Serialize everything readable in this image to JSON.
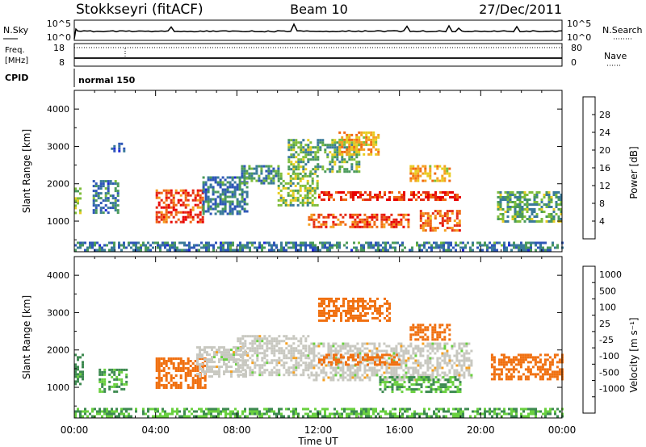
{
  "header": {
    "station": "Stokkseyri (fitACF)",
    "beam": "Beam 10",
    "date": "27/Dec/2011"
  },
  "noise_panel": {
    "left_label": "N.Sky",
    "left_ticks": [
      "10^5",
      "10^0"
    ],
    "right_label": "N.Search",
    "right_ticks": [
      "10^5",
      "10^0"
    ]
  },
  "freq_panel": {
    "left_label_line1": "Freq.",
    "left_label_line2": "[MHz]",
    "left_ticks": [
      "18",
      "8"
    ],
    "right_label": "Nave",
    "right_ticks": [
      "80",
      "0"
    ]
  },
  "cpid": {
    "label": "CPID",
    "mode": "normal 150"
  },
  "colors": {
    "power_scale": [
      "#1e28d8",
      "#2e56b8",
      "#3a7a9a",
      "#4a9a5a",
      "#7ebd3a",
      "#e8cc20",
      "#f5a020",
      "#f06a14",
      "#e42c14",
      "#e80000"
    ],
    "velocity_scale": [
      "#2a3ad0",
      "#3a6ac0",
      "#3d8a50",
      "#6ad040",
      "#c8c8c0",
      "#f5a020",
      "#f07010",
      "#ee3a10",
      "#e80000"
    ],
    "ground_scatter": "#c8c8c0"
  },
  "chart_data": [
    {
      "type": "heatmap",
      "panel": "power",
      "ylabel": "Slant Range [km]",
      "ylim": [
        180,
        4500
      ],
      "yticks": [
        "1000",
        "2000",
        "3000",
        "4000"
      ],
      "xlim_hours": [
        0,
        24
      ],
      "colorbar": {
        "label": "Power [dB]",
        "range": [
          0,
          32
        ],
        "ticks": [
          "4",
          "8",
          "12",
          "16",
          "20",
          "24",
          "28"
        ]
      },
      "regions": [
        {
          "t": [
            0.0,
            0.35
          ],
          "r": [
            1200,
            1900
          ],
          "value": 16
        },
        {
          "t": [
            0.9,
            2.2
          ],
          "r": [
            1200,
            2100
          ],
          "value": 8
        },
        {
          "t": [
            1.8,
            2.4
          ],
          "r": [
            2900,
            3100
          ],
          "value": 6
        },
        {
          "t": [
            4.0,
            6.3
          ],
          "r": [
            1000,
            1850
          ],
          "value": 26
        },
        {
          "t": [
            6.3,
            8.5
          ],
          "r": [
            1200,
            2200
          ],
          "value": 8
        },
        {
          "t": [
            8.2,
            10.0
          ],
          "r": [
            2000,
            2500
          ],
          "value": 10
        },
        {
          "t": [
            10.0,
            12.0
          ],
          "r": [
            1400,
            2300
          ],
          "value": 14
        },
        {
          "t": [
            10.5,
            14.0
          ],
          "r": [
            2300,
            3200
          ],
          "value": 12
        },
        {
          "t": [
            12.0,
            19.0
          ],
          "r": [
            1550,
            1800
          ],
          "value": 28
        },
        {
          "t": [
            11.5,
            16.5
          ],
          "r": [
            850,
            1200
          ],
          "value": 26
        },
        {
          "t": [
            13.0,
            15.0
          ],
          "r": [
            2800,
            3400
          ],
          "value": 20
        },
        {
          "t": [
            16.5,
            18.5
          ],
          "r": [
            2100,
            2500
          ],
          "value": 20
        },
        {
          "t": [
            17.0,
            19.0
          ],
          "r": [
            750,
            1300
          ],
          "value": 24
        },
        {
          "t": [
            20.8,
            24.0
          ],
          "r": [
            1000,
            1800
          ],
          "value": 12
        },
        {
          "t": [
            0.0,
            24.0
          ],
          "r": [
            200,
            450
          ],
          "value": 8
        }
      ]
    },
    {
      "type": "heatmap",
      "panel": "velocity",
      "ylabel": "Slant Range [km]",
      "xlabel": "Time UT",
      "ylim": [
        180,
        4500
      ],
      "yticks": [
        "1000",
        "2000",
        "3000",
        "4000"
      ],
      "xlim_hours": [
        0,
        24
      ],
      "xticks": [
        "00:00",
        "04:00",
        "08:00",
        "12:00",
        "16:00",
        "20:00",
        "00:00"
      ],
      "colorbar": {
        "label": "Velocity [m s⁻¹]",
        "ticks": [
          "1000",
          "500",
          "100",
          "25",
          "-25",
          "-100",
          "-500",
          "-1000"
        ]
      },
      "regions": [
        {
          "t": [
            0.0,
            0.4
          ],
          "r": [
            1100,
            1900
          ],
          "value": 150
        },
        {
          "t": [
            1.2,
            2.6
          ],
          "r": [
            900,
            1500
          ],
          "value": 100
        },
        {
          "t": [
            4.0,
            6.5
          ],
          "r": [
            1000,
            1800
          ],
          "value": -200
        },
        {
          "t": [
            6.0,
            8.5
          ],
          "r": [
            1300,
            2100
          ],
          "value": 0
        },
        {
          "t": [
            8.0,
            11.5
          ],
          "r": [
            1300,
            2400
          ],
          "value": 0
        },
        {
          "t": [
            11.5,
            19.5
          ],
          "r": [
            1200,
            2200
          ],
          "value": 0
        },
        {
          "t": [
            12.0,
            16.0
          ],
          "r": [
            1600,
            1900
          ],
          "value": -200
        },
        {
          "t": [
            12.0,
            15.5
          ],
          "r": [
            2800,
            3400
          ],
          "value": -200
        },
        {
          "t": [
            16.5,
            18.5
          ],
          "r": [
            2300,
            2700
          ],
          "value": -200
        },
        {
          "t": [
            15.0,
            19.0
          ],
          "r": [
            900,
            1300
          ],
          "value": 100
        },
        {
          "t": [
            20.5,
            24.0
          ],
          "r": [
            1200,
            1900
          ],
          "value": -300
        },
        {
          "t": [
            0.0,
            24.0
          ],
          "r": [
            200,
            450
          ],
          "value": 100
        }
      ]
    }
  ]
}
